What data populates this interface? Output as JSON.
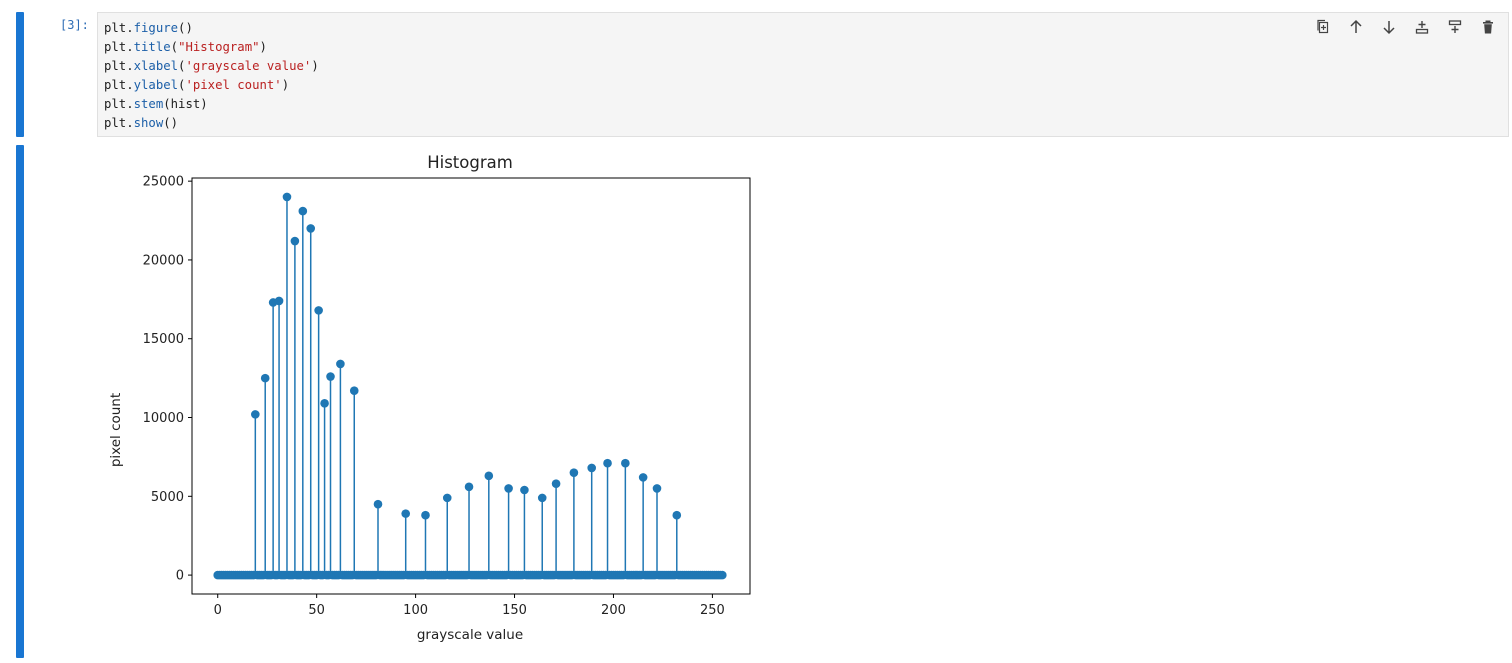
{
  "cell": {
    "prompt": "[3]:",
    "code_lines": [
      {
        "obj": "plt",
        "fn": "figure",
        "args": "",
        "str": ""
      },
      {
        "obj": "plt",
        "fn": "title",
        "args": "",
        "str": "\"Histogram\""
      },
      {
        "obj": "plt",
        "fn": "xlabel",
        "args": "",
        "str": "'grayscale value'"
      },
      {
        "obj": "plt",
        "fn": "ylabel",
        "args": "",
        "str": "'pixel count'"
      },
      {
        "obj": "plt",
        "fn": "stem",
        "args": "hist",
        "str": ""
      },
      {
        "obj": "plt",
        "fn": "show",
        "args": "",
        "str": ""
      }
    ]
  },
  "toolbar": {
    "icons": [
      "duplicate-icon",
      "move-up-icon",
      "move-down-icon",
      "insert-above-icon",
      "insert-below-icon",
      "delete-icon"
    ]
  },
  "colors": {
    "accent_rail": "#1976d2",
    "stem": "#1f77b4",
    "baseline": "#d62728"
  },
  "chart_data": {
    "type": "stem",
    "title": "Histogram",
    "xlabel": "grayscale value",
    "ylabel": "pixel count",
    "xlim": [
      -13,
      269
    ],
    "ylim": [
      -1200,
      25200
    ],
    "xticks": [
      0,
      50,
      100,
      150,
      200,
      250
    ],
    "yticks": [
      0,
      5000,
      10000,
      15000,
      20000,
      25000
    ],
    "x": [
      0,
      255
    ],
    "nonzero_points": [
      {
        "x": 19,
        "y": 10200
      },
      {
        "x": 24,
        "y": 12500
      },
      {
        "x": 28,
        "y": 17300
      },
      {
        "x": 31,
        "y": 17400
      },
      {
        "x": 35,
        "y": 24000
      },
      {
        "x": 39,
        "y": 21200
      },
      {
        "x": 43,
        "y": 23100
      },
      {
        "x": 47,
        "y": 22000
      },
      {
        "x": 51,
        "y": 16800
      },
      {
        "x": 54,
        "y": 10900
      },
      {
        "x": 57,
        "y": 12600
      },
      {
        "x": 62,
        "y": 13400
      },
      {
        "x": 69,
        "y": 11700
      },
      {
        "x": 81,
        "y": 4500
      },
      {
        "x": 95,
        "y": 3900
      },
      {
        "x": 105,
        "y": 3800
      },
      {
        "x": 116,
        "y": 4900
      },
      {
        "x": 127,
        "y": 5600
      },
      {
        "x": 137,
        "y": 6300
      },
      {
        "x": 147,
        "y": 5500
      },
      {
        "x": 155,
        "y": 5400
      },
      {
        "x": 164,
        "y": 4900
      },
      {
        "x": 171,
        "y": 5800
      },
      {
        "x": 180,
        "y": 6500
      },
      {
        "x": 189,
        "y": 6800
      },
      {
        "x": 197,
        "y": 7100
      },
      {
        "x": 206,
        "y": 7100
      },
      {
        "x": 215,
        "y": 6200
      },
      {
        "x": 222,
        "y": 5500
      },
      {
        "x": 232,
        "y": 3800
      }
    ],
    "zero_elsewhere": true,
    "grid": false
  }
}
